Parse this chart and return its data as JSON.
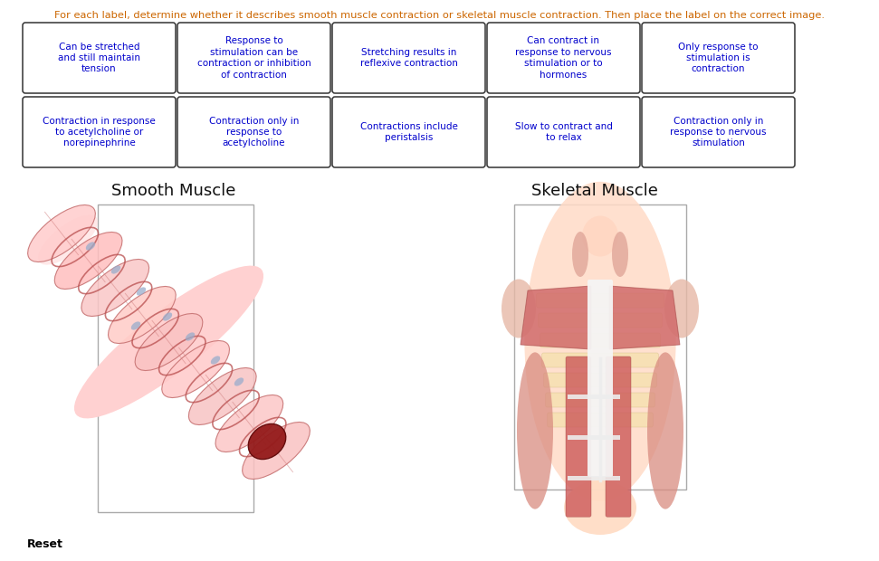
{
  "title_text": "For each label, determine whether it describes smooth muscle contraction or skeletal muscle contraction. Then place the label on the correct image.",
  "title_color": "#cc6600",
  "bg_color": "#ffffff",
  "label_text_color": "#0000cc",
  "label_border_color": "#333333",
  "row1_labels": [
    "Can be stretched\nand still maintain\ntension",
    "Response to\nstimulation can be\ncontraction or inhibition\nof contraction",
    "Stretching results in\nreflexive contraction",
    "Can contract in\nresponse to nervous\nstimulation or to\nhormones",
    "Only response to\nstimulation is\ncontraction"
  ],
  "row2_labels": [
    "Contraction in response\nto acetylcholine or\nnorepinephrine",
    "Contraction only in\nresponse to\nacetylcholine",
    "Contractions include\nperistalsis",
    "Slow to contract and\nto relax",
    "Contraction only in\nresponse to nervous\nstimulation"
  ],
  "smooth_muscle_title": "Smooth Muscle",
  "skeletal_muscle_title": "Skeletal Muscle",
  "reset_text": "Reset"
}
